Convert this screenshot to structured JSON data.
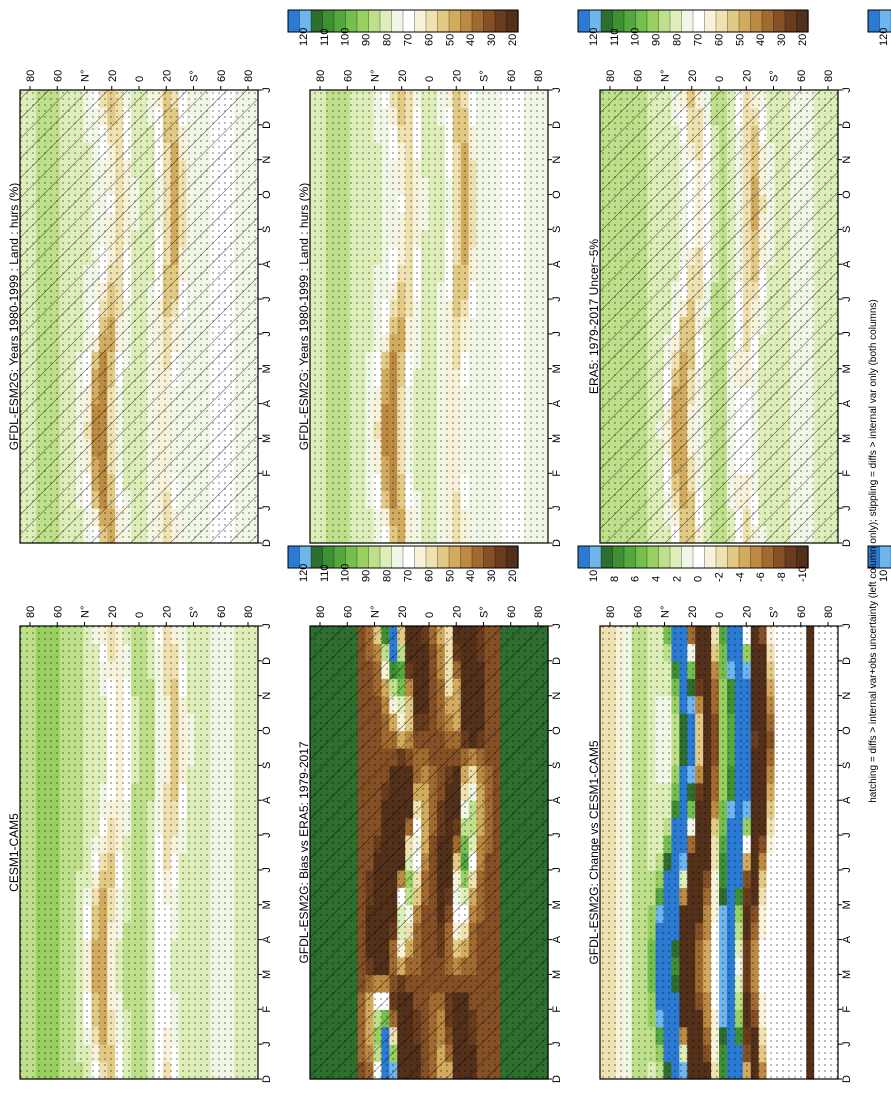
{
  "footnote": "hatching = diffs > internal var+obs uncertainty (left column only); stippling = diffs > internal var only (both columns)",
  "colorbar_values_abs": [
    "120",
    "110",
    "100",
    "90",
    "80",
    "70",
    "60",
    "50",
    "40",
    "30",
    "20"
  ],
  "colorbar_values_diff": [
    "10",
    "8",
    "6",
    "4",
    "2",
    "0",
    "-2",
    "-4",
    "-6",
    "-8",
    "-10"
  ],
  "palette_abs": [
    "#2b7bd4",
    "#6fb6ee",
    "#2e6e2e",
    "#3f8f35",
    "#55a83f",
    "#74bf4e",
    "#98d162",
    "#bfe08a",
    "#ddeeb8",
    "#f1f7e6",
    "#ffffff",
    "#f8f2da",
    "#efe2b0",
    "#e2c984",
    "#d2ab5e",
    "#bc8a43",
    "#a16a31",
    "#855026",
    "#6a3c1e",
    "#52301a"
  ],
  "chart_data": [
    {
      "type": "heatmap",
      "title": "GFDL-ESM2G: Years 1980-1999 : Land : hurs (%)",
      "x": [
        "D",
        "J",
        "F",
        "M",
        "A",
        "M",
        "J",
        "J",
        "A",
        "S",
        "O",
        "N",
        "D",
        "J"
      ],
      "y_ticks": [
        "80",
        "60",
        "N°",
        "20",
        "0",
        "20",
        "S°",
        "60",
        "80"
      ],
      "colorbar": "abs",
      "hatching": true,
      "stippling": true
    },
    {
      "type": "heatmap",
      "title": "GFDL-ESM2G: Years 1980-1999 : Land : hurs (%)",
      "x": [
        "D",
        "J",
        "F",
        "M",
        "A",
        "M",
        "J",
        "J",
        "A",
        "S",
        "O",
        "N",
        "D",
        "J"
      ],
      "y_ticks": [
        "80",
        "60",
        "N°",
        "20",
        "0",
        "20",
        "S°",
        "60",
        "80"
      ],
      "colorbar": "abs",
      "hatching": false,
      "stippling": true
    },
    {
      "type": "heatmap",
      "title": "ERA5: 1979-2017 Uncer~5%",
      "x": [
        "D",
        "J",
        "F",
        "M",
        "A",
        "M",
        "J",
        "J",
        "A",
        "S",
        "O",
        "N",
        "D",
        "J"
      ],
      "y_ticks": [
        "80",
        "60",
        "N°",
        "20",
        "0",
        "20",
        "S°",
        "60",
        "80"
      ],
      "colorbar": "abs",
      "hatching": true,
      "stippling": true
    },
    {
      "type": "heatmap",
      "title": "CESM1-CAM5",
      "x": [
        "D",
        "J",
        "F",
        "M",
        "A",
        "M",
        "J",
        "J",
        "A",
        "S",
        "O",
        "N",
        "D",
        "J"
      ],
      "y_ticks": [
        "80",
        "60",
        "N°",
        "20",
        "0",
        "20",
        "S°",
        "60",
        "80"
      ],
      "colorbar": "abs",
      "hatching": false,
      "stippling": true
    },
    {
      "type": "heatmap",
      "title": "GFDL-ESM2G: Bias vs ERA5: 1979-2017",
      "x": [
        "D",
        "J",
        "F",
        "M",
        "A",
        "M",
        "J",
        "J",
        "A",
        "S",
        "O",
        "N",
        "D",
        "J"
      ],
      "y_ticks": [
        "80",
        "60",
        "N°",
        "20",
        "0",
        "20",
        "S°",
        "60",
        "80"
      ],
      "colorbar": "diff",
      "hatching": true,
      "stippling": true
    },
    {
      "type": "heatmap",
      "title": "GFDL-ESM2G: Change vs CESM1-CAM5",
      "x": [
        "D",
        "J",
        "F",
        "M",
        "A",
        "M",
        "J",
        "J",
        "A",
        "S",
        "O",
        "N",
        "D",
        "J"
      ],
      "y_ticks": [
        "80",
        "60",
        "N°",
        "20",
        "0",
        "20",
        "S°",
        "60",
        "80"
      ],
      "colorbar": "diff",
      "hatching": false,
      "stippling": true
    }
  ]
}
